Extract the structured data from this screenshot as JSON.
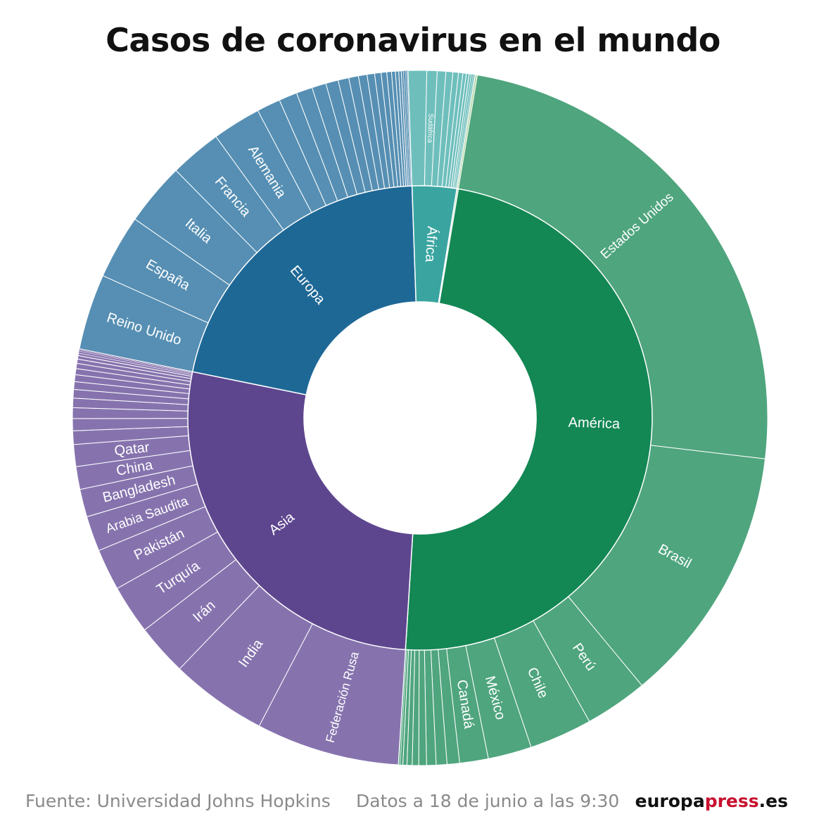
{
  "footer": {
    "source": "Fuente: Universidad Johns Hopkins",
    "date": "Datos a 18 de junio a las 9:30",
    "brand_main": "europa",
    "brand_accent": "press",
    "brand_suffix": ".es"
  },
  "colors": {
    "america_inner": "#138754",
    "america_outer": "#4fa57e",
    "europa_inner": "#1e6896",
    "europa_outer": "#568fb3",
    "africa_inner": "#3aa5a0",
    "africa_outer": "#6ebfbc",
    "asia_inner": "#5e468f",
    "asia_outer": "#8673ae",
    "separator": "#ffffff"
  },
  "chart_data": {
    "type": "sunburst",
    "title": "Casos de coronavirus en el mundo",
    "regions": [
      {
        "name": "América",
        "color_key": "america",
        "children": [
          {
            "name": "Estados Unidos",
            "share": 0.2688
          },
          {
            "name": "Brasil",
            "share": 0.121
          },
          {
            "name": "Perú",
            "share": 0.0292
          },
          {
            "name": "Chile",
            "share": 0.0292
          },
          {
            "name": "México",
            "share": 0.0203
          },
          {
            "name": "Canadá",
            "share": 0.0133
          },
          {
            "name": "",
            "share": 0.0058
          },
          {
            "name": "",
            "share": 0.005
          },
          {
            "name": "",
            "share": 0.0044
          },
          {
            "name": "",
            "share": 0.0036
          },
          {
            "name": "",
            "share": 0.003
          },
          {
            "name": "",
            "share": 0.0024
          },
          {
            "name": "",
            "share": 0.0019
          },
          {
            "name": "",
            "share": 0.0012
          },
          {
            "name": "",
            "share": 0.0006
          },
          {
            "name": "",
            "share": 0.0003
          }
        ]
      },
      {
        "name": "Asia",
        "color_key": "asia",
        "children": [
          {
            "name": "Federación Rusa",
            "share": 0.0666
          },
          {
            "name": "India",
            "share": 0.045
          },
          {
            "name": "Irán",
            "share": 0.024
          },
          {
            "name": "Turquía",
            "share": 0.0228
          },
          {
            "name": "Pakistán",
            "share": 0.0193
          },
          {
            "name": "Arabia Saudita",
            "share": 0.0164
          },
          {
            "name": "Bangladesh",
            "share": 0.0129
          },
          {
            "name": "China",
            "share": 0.0106
          },
          {
            "name": "Qatar",
            "share": 0.0102
          },
          {
            "name": "",
            "share": 0.0063
          },
          {
            "name": "",
            "share": 0.0056
          },
          {
            "name": "",
            "share": 0.005
          },
          {
            "name": "",
            "share": 0.0044
          },
          {
            "name": "",
            "share": 0.004
          },
          {
            "name": "",
            "share": 0.0036
          },
          {
            "name": "",
            "share": 0.0032
          },
          {
            "name": "",
            "share": 0.0028
          },
          {
            "name": "",
            "share": 0.0024
          },
          {
            "name": "",
            "share": 0.002
          },
          {
            "name": "",
            "share": 0.0016
          },
          {
            "name": "",
            "share": 0.0012
          },
          {
            "name": "",
            "share": 0.0009
          },
          {
            "name": "",
            "share": 0.0006
          },
          {
            "name": "",
            "share": 0.0005
          }
        ]
      },
      {
        "name": "Europa",
        "color_key": "europa",
        "children": [
          {
            "name": "Reino Unido",
            "share": 0.0352
          },
          {
            "name": "España",
            "share": 0.0298
          },
          {
            "name": "Italia",
            "share": 0.0292
          },
          {
            "name": "Francia",
            "share": 0.024
          },
          {
            "name": "Alemania",
            "share": 0.0226
          },
          {
            "name": "",
            "share": 0.011
          },
          {
            "name": "",
            "share": 0.0085
          },
          {
            "name": "",
            "share": 0.0075
          },
          {
            "name": "",
            "share": 0.0066
          },
          {
            "name": "",
            "share": 0.0058
          },
          {
            "name": "",
            "share": 0.005
          },
          {
            "name": "",
            "share": 0.0045
          },
          {
            "name": "",
            "share": 0.004
          },
          {
            "name": "",
            "share": 0.0035
          },
          {
            "name": "",
            "share": 0.003
          },
          {
            "name": "",
            "share": 0.0026
          },
          {
            "name": "",
            "share": 0.0022
          },
          {
            "name": "",
            "share": 0.0018
          },
          {
            "name": "",
            "share": 0.0015
          },
          {
            "name": "",
            "share": 0.0012
          },
          {
            "name": "",
            "share": 0.001
          },
          {
            "name": "",
            "share": 0.0008
          },
          {
            "name": "",
            "share": 0.0006
          },
          {
            "name": "",
            "share": 0.0004
          },
          {
            "name": "",
            "share": 0.0003
          }
        ]
      },
      {
        "name": "África",
        "color_key": "africa",
        "children": [
          {
            "name": "",
            "share": 0.0086
          },
          {
            "name": "Sudáfrica",
            "share": 0.0048
          },
          {
            "name": "",
            "share": 0.004
          },
          {
            "name": "",
            "share": 0.0032
          },
          {
            "name": "",
            "share": 0.0026
          },
          {
            "name": "",
            "share": 0.002
          },
          {
            "name": "",
            "share": 0.0016
          },
          {
            "name": "",
            "share": 0.0013
          },
          {
            "name": "",
            "share": 0.001
          },
          {
            "name": "",
            "share": 0.0008
          },
          {
            "name": "",
            "share": 0.0006
          },
          {
            "name": "",
            "share": 0.0004
          }
        ]
      },
      {
        "name": "",
        "color_key": "other",
        "children": [
          {
            "name": "",
            "share": 0.001
          }
        ]
      }
    ]
  }
}
